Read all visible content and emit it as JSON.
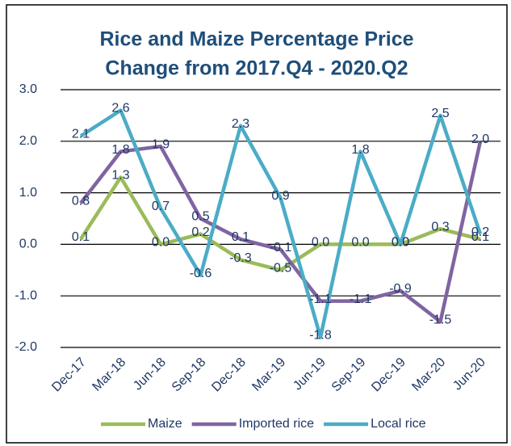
{
  "chart_data": {
    "type": "line",
    "title": [
      "Rice and Maize Percentage Price",
      "Change from 2017.Q4 - 2020.Q2"
    ],
    "categories": [
      "Dec-17",
      "Mar-18",
      "Jun-18",
      "Sep-18",
      "Dec-18",
      "Mar-19",
      "Jun-19",
      "Sep-19",
      "Dec-19",
      "Mar-20",
      "Jun-20"
    ],
    "series": [
      {
        "name": "Maize",
        "color": "#9bbb59",
        "values": [
          0.1,
          1.3,
          0.0,
          0.2,
          -0.3,
          -0.5,
          0.0,
          0.0,
          0.0,
          0.3,
          0.1
        ],
        "value_labels": [
          "0.1",
          "1.3",
          "0.0",
          "0.2",
          "-0.3",
          "-0.5",
          "0.0",
          "0.0",
          "0.0",
          "0.3",
          "0.1"
        ]
      },
      {
        "name": "Imported rice",
        "color": "#8064a2",
        "values": [
          0.8,
          1.8,
          1.9,
          0.5,
          0.1,
          -0.1,
          -1.1,
          -1.1,
          -0.9,
          -1.5,
          2.0
        ],
        "value_labels": [
          "0.8",
          "1.8",
          "1.9",
          "0.5",
          "0.1",
          "-0.1",
          "-1.1",
          "-1.1",
          "-0.9",
          "-1.5",
          "2.0"
        ]
      },
      {
        "name": "Local rice",
        "color": "#4bacc6",
        "values": [
          2.1,
          2.6,
          0.7,
          -0.6,
          2.3,
          0.9,
          -1.8,
          1.8,
          0.0,
          2.5,
          0.2
        ],
        "value_labels": [
          "2.1",
          "2.6",
          "0.7",
          "-0.6",
          "2.3",
          "0.9",
          "-1.8",
          "1.8",
          "0.0",
          "2.5",
          "0.2"
        ]
      }
    ],
    "ylim": [
      -2,
      3
    ],
    "yticks": [
      {
        "value": -2,
        "label": "-2.0"
      },
      {
        "value": -1,
        "label": "-1.0"
      },
      {
        "value": 0,
        "label": "0.0"
      },
      {
        "value": 1,
        "label": "1.0"
      },
      {
        "value": 2,
        "label": "2.0"
      },
      {
        "value": 3,
        "label": "3.0"
      }
    ],
    "grid": true,
    "legend": "bottom"
  }
}
